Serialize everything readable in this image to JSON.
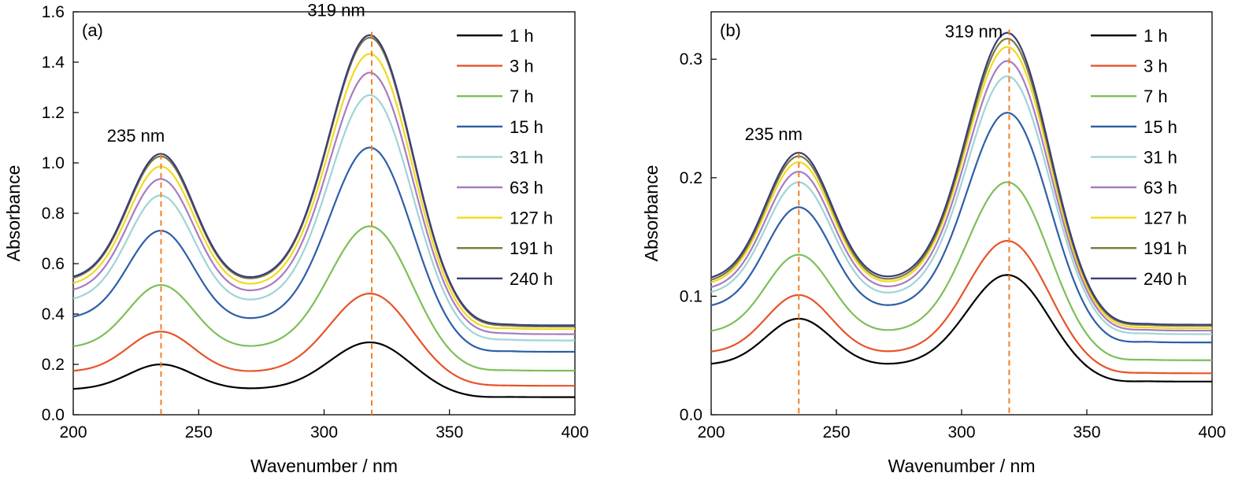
{
  "chart_data": [
    {
      "type": "line",
      "title": "",
      "panel_label": "(a)",
      "xlabel": "Wavenumber / nm",
      "ylabel": "Absorbance",
      "xlim": [
        200,
        400
      ],
      "ylim": [
        0,
        1.6
      ],
      "xticks": [
        200,
        250,
        300,
        350,
        400
      ],
      "yticks": [
        0.0,
        0.2,
        0.4,
        0.6,
        0.8,
        1.0,
        1.2,
        1.4,
        1.6
      ],
      "ytick_labels": [
        "0.0",
        "0.2",
        "0.4",
        "0.6",
        "0.8",
        "1.0",
        "1.2",
        "1.4",
        "1.6"
      ],
      "grid": false,
      "legend_position": "top-right",
      "annotations": [
        {
          "text": "235 nm",
          "x": 235
        },
        {
          "text": "319 nm",
          "x": 319
        }
      ],
      "vlines": [
        235,
        319
      ],
      "series": [
        {
          "name": "1 h",
          "color": "#000000",
          "base": 0.1,
          "peak1": 0.2,
          "min": 0.1,
          "peak2": 0.29,
          "tail": 0.065,
          "plateau": 0.07
        },
        {
          "name": "3 h",
          "color": "#e8532a",
          "base": 0.17,
          "peak1": 0.33,
          "min": 0.165,
          "peak2": 0.485,
          "tail": 0.11,
          "plateau": 0.115
        },
        {
          "name": "7 h",
          "color": "#7dbf5a",
          "base": 0.265,
          "peak1": 0.515,
          "min": 0.26,
          "peak2": 0.755,
          "tail": 0.165,
          "plateau": 0.175
        },
        {
          "name": "15 h",
          "color": "#2e5ea8",
          "base": 0.38,
          "peak1": 0.73,
          "min": 0.365,
          "peak2": 1.07,
          "tail": 0.235,
          "plateau": 0.25
        },
        {
          "name": "31 h",
          "color": "#9fd4d6",
          "base": 0.45,
          "peak1": 0.87,
          "min": 0.435,
          "peak2": 1.28,
          "tail": 0.28,
          "plateau": 0.295
        },
        {
          "name": "63 h",
          "color": "#a87bc2",
          "base": 0.485,
          "peak1": 0.935,
          "min": 0.47,
          "peak2": 1.37,
          "tail": 0.305,
          "plateau": 0.32
        },
        {
          "name": "127 h",
          "color": "#f3d820",
          "base": 0.51,
          "peak1": 0.985,
          "min": 0.495,
          "peak2": 1.445,
          "tail": 0.32,
          "plateau": 0.34
        },
        {
          "name": "191 h",
          "color": "#7a7a3a",
          "base": 0.53,
          "peak1": 1.025,
          "min": 0.515,
          "peak2": 1.51,
          "tail": 0.335,
          "plateau": 0.35
        },
        {
          "name": "240 h",
          "color": "#3a3d7a",
          "base": 0.535,
          "peak1": 1.035,
          "min": 0.52,
          "peak2": 1.52,
          "tail": 0.34,
          "plateau": 0.355
        }
      ]
    },
    {
      "type": "line",
      "title": "",
      "panel_label": "(b)",
      "xlabel": "Wavenumber / nm",
      "ylabel": "Absorbance",
      "xlim": [
        200,
        400
      ],
      "ylim": [
        0,
        0.34
      ],
      "xticks": [
        200,
        250,
        300,
        350,
        400
      ],
      "yticks": [
        0.0,
        0.1,
        0.2,
        0.3
      ],
      "ytick_labels": [
        "0.0",
        "0.1",
        "0.2",
        "0.3"
      ],
      "grid": false,
      "legend_position": "top-right",
      "annotations": [
        {
          "text": "235 nm",
          "x": 235
        },
        {
          "text": "319 nm",
          "x": 319
        }
      ],
      "vlines": [
        235,
        319
      ],
      "series": [
        {
          "name": "1 h",
          "color": "#000000",
          "base": 0.042,
          "peak1": 0.081,
          "min": 0.041,
          "peak2": 0.119,
          "tail": 0.026,
          "plateau": 0.028
        },
        {
          "name": "3 h",
          "color": "#e8532a",
          "base": 0.052,
          "peak1": 0.101,
          "min": 0.051,
          "peak2": 0.148,
          "tail": 0.033,
          "plateau": 0.035
        },
        {
          "name": "7 h",
          "color": "#7dbf5a",
          "base": 0.069,
          "peak1": 0.135,
          "min": 0.068,
          "peak2": 0.198,
          "tail": 0.043,
          "plateau": 0.046
        },
        {
          "name": "15 h",
          "color": "#2e5ea8",
          "base": 0.09,
          "peak1": 0.175,
          "min": 0.088,
          "peak2": 0.257,
          "tail": 0.057,
          "plateau": 0.061
        },
        {
          "name": "31 h",
          "color": "#9fd4d6",
          "base": 0.101,
          "peak1": 0.196,
          "min": 0.098,
          "peak2": 0.288,
          "tail": 0.064,
          "plateau": 0.068
        },
        {
          "name": "63 h",
          "color": "#a87bc2",
          "base": 0.105,
          "peak1": 0.205,
          "min": 0.103,
          "peak2": 0.301,
          "tail": 0.067,
          "plateau": 0.071
        },
        {
          "name": "127 h",
          "color": "#f3d820",
          "base": 0.109,
          "peak1": 0.213,
          "min": 0.107,
          "peak2": 0.313,
          "tail": 0.069,
          "plateau": 0.073
        },
        {
          "name": "191 h",
          "color": "#7a7a3a",
          "base": 0.111,
          "peak1": 0.218,
          "min": 0.109,
          "peak2": 0.32,
          "tail": 0.071,
          "plateau": 0.075
        },
        {
          "name": "240 h",
          "color": "#3a3d7a",
          "base": 0.113,
          "peak1": 0.221,
          "min": 0.111,
          "peak2": 0.325,
          "tail": 0.072,
          "plateau": 0.076
        }
      ]
    }
  ],
  "colors": {
    "marker_line": "#f0822a",
    "axis": "#000000"
  }
}
